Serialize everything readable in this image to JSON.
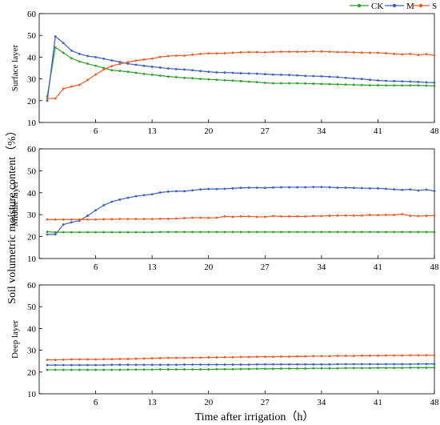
{
  "figure": {
    "ylabel": "Soil volumetric moisture content（%）",
    "xlabel": "Time after irrigation（h）"
  },
  "legend": [
    {
      "name": "CK",
      "color": "#2ca02c"
    },
    {
      "name": "M",
      "color": "#3a5fbd"
    },
    {
      "name": "S",
      "color": "#f05a28"
    }
  ],
  "chart_data": [
    {
      "type": "line",
      "panel_label": "Surface layer",
      "xlim": [
        -1,
        48
      ],
      "ylim": [
        10,
        60
      ],
      "xticks": [
        6,
        13,
        20,
        27,
        34,
        41,
        48
      ],
      "yticks": [
        10,
        20,
        30,
        40,
        50,
        60
      ],
      "grid": false,
      "legend": "top-right",
      "x": [
        0,
        1,
        2,
        3,
        4,
        5,
        6,
        7,
        8,
        9,
        10,
        11,
        12,
        13,
        14,
        15,
        16,
        17,
        18,
        19,
        20,
        21,
        22,
        23,
        24,
        25,
        26,
        27,
        28,
        29,
        30,
        31,
        32,
        33,
        34,
        35,
        36,
        37,
        38,
        39,
        40,
        41,
        42,
        43,
        44,
        45,
        46,
        47,
        48
      ],
      "series": [
        {
          "name": "CK",
          "values": [
            22,
            44.5,
            42,
            39.5,
            38,
            37,
            36,
            35,
            34,
            33.7,
            33.3,
            32.8,
            32.3,
            31.9,
            31.5,
            31.1,
            30.8,
            30.5,
            30.3,
            30,
            29.8,
            29.6,
            29.4,
            29.2,
            29,
            28.7,
            28.5,
            28.2,
            28,
            28,
            28,
            28,
            27.9,
            27.8,
            27.7,
            27.6,
            27.5,
            27.4,
            27.3,
            27.2,
            27.1,
            27.1,
            27,
            27,
            27,
            27,
            27,
            26.9,
            26.8
          ]
        },
        {
          "name": "M",
          "values": [
            20,
            49.5,
            46.5,
            43,
            41.5,
            40.5,
            40,
            39.3,
            38.5,
            37.8,
            37,
            36.5,
            36,
            35.6,
            35.2,
            34.8,
            34.5,
            34.3,
            34,
            33.6,
            33.3,
            33,
            32.9,
            32.8,
            32.6,
            32.5,
            32.4,
            32.2,
            32,
            31.9,
            31.8,
            31.6,
            31.4,
            31.3,
            31.2,
            31,
            30.8,
            30.5,
            30.2,
            30,
            29.6,
            29.3,
            29.1,
            29,
            28.9,
            28.8,
            28.6,
            28.4,
            28.3
          ]
        },
        {
          "name": "S",
          "values": [
            21,
            21,
            25.5,
            26.5,
            27.3,
            29.5,
            32,
            34.3,
            35.9,
            36.9,
            37.7,
            38.4,
            38.9,
            39.3,
            40.1,
            40.5,
            40.7,
            40.7,
            41.1,
            41.5,
            41.7,
            41.7,
            41.8,
            42,
            42.2,
            42.3,
            42.3,
            42.2,
            42.4,
            42.5,
            42.5,
            42.5,
            42.5,
            42.6,
            42.6,
            42.5,
            42.3,
            42.3,
            42.2,
            42.1,
            42,
            42,
            41.8,
            41.5,
            41.3,
            41.5,
            41,
            41.4,
            40.8
          ]
        }
      ]
    },
    {
      "type": "line",
      "panel_label": "Middle layer",
      "xlim": [
        -1,
        48
      ],
      "ylim": [
        10,
        60
      ],
      "xticks": [
        6,
        13,
        20,
        27,
        34,
        41,
        48
      ],
      "yticks": [
        10,
        20,
        30,
        40,
        50,
        60
      ],
      "grid": false,
      "x": [
        0,
        1,
        2,
        3,
        4,
        5,
        6,
        7,
        8,
        9,
        10,
        11,
        12,
        13,
        14,
        15,
        16,
        17,
        18,
        19,
        20,
        21,
        22,
        23,
        24,
        25,
        26,
        27,
        28,
        29,
        30,
        31,
        32,
        33,
        34,
        35,
        36,
        37,
        38,
        39,
        40,
        41,
        42,
        43,
        44,
        45,
        46,
        47,
        48
      ],
      "series": [
        {
          "name": "CK",
          "values": [
            22.2,
            22,
            22,
            22,
            22,
            22,
            22,
            22,
            22,
            22,
            22,
            22,
            22,
            22,
            22.1,
            22.1,
            22.1,
            22.1,
            22.1,
            22.1,
            22.1,
            22.1,
            22.1,
            22.1,
            22.1,
            22.1,
            22.1,
            22.1,
            22.1,
            22.1,
            22.1,
            22.1,
            22.1,
            22.1,
            22.1,
            22.1,
            22.1,
            22.1,
            22.1,
            22.1,
            22.1,
            22.1,
            22.1,
            22.1,
            22.1,
            22.1,
            22.1,
            22.1,
            22.1
          ]
        },
        {
          "name": "M",
          "values": [
            21,
            21,
            25.5,
            26.5,
            27.3,
            29.5,
            32,
            34.3,
            35.9,
            36.9,
            37.7,
            38.4,
            38.9,
            39.3,
            40.1,
            40.5,
            40.7,
            40.7,
            41.1,
            41.5,
            41.7,
            41.7,
            41.8,
            42,
            42.2,
            42.3,
            42.3,
            42.2,
            42.4,
            42.5,
            42.5,
            42.5,
            42.5,
            42.6,
            42.6,
            42.5,
            42.3,
            42.3,
            42.2,
            42.1,
            42,
            42,
            41.8,
            41.5,
            41.3,
            41.5,
            41,
            41.4,
            40.8
          ]
        },
        {
          "name": "S",
          "values": [
            27.8,
            27.8,
            27.8,
            27.8,
            27.8,
            27.8,
            27.8,
            27.9,
            27.9,
            28,
            28,
            28,
            28,
            28,
            28.1,
            28.1,
            28.2,
            28.4,
            28.6,
            28.6,
            28.5,
            28.6,
            29.2,
            29,
            29.2,
            29.2,
            29,
            29,
            29.4,
            29.2,
            29.2,
            29.2,
            29.2,
            29.4,
            29.4,
            29.5,
            29.6,
            29.6,
            29.6,
            29.6,
            29.9,
            29.8,
            29.9,
            29.9,
            30.2,
            29.5,
            29.4,
            29.5,
            29.6
          ]
        }
      ]
    },
    {
      "type": "line",
      "panel_label": "Deep layer",
      "xlim": [
        -1,
        48
      ],
      "ylim": [
        10,
        60
      ],
      "xticks": [
        6,
        13,
        20,
        27,
        34,
        41,
        48
      ],
      "yticks": [
        10,
        20,
        30,
        40,
        50,
        60
      ],
      "grid": false,
      "x": [
        0,
        1,
        2,
        3,
        4,
        5,
        6,
        7,
        8,
        9,
        10,
        11,
        12,
        13,
        14,
        15,
        16,
        17,
        18,
        19,
        20,
        21,
        22,
        23,
        24,
        25,
        26,
        27,
        28,
        29,
        30,
        31,
        32,
        33,
        34,
        35,
        36,
        37,
        38,
        39,
        40,
        41,
        42,
        43,
        44,
        45,
        46,
        47,
        48
      ],
      "series": [
        {
          "name": "CK",
          "values": [
            21,
            21,
            21,
            21,
            21,
            21,
            21,
            21,
            21,
            21,
            21.1,
            21.1,
            21.1,
            21.1,
            21.2,
            21.2,
            21.2,
            21.2,
            21.2,
            21.2,
            21.2,
            21.3,
            21.3,
            21.3,
            21.4,
            21.4,
            21.5,
            21.5,
            21.5,
            21.6,
            21.6,
            21.6,
            21.6,
            21.7,
            21.7,
            21.7,
            21.7,
            21.8,
            21.8,
            21.8,
            21.8,
            21.9,
            21.9,
            21.9,
            21.9,
            22,
            22,
            22,
            22
          ]
        },
        {
          "name": "M",
          "values": [
            23.2,
            23.2,
            23.2,
            23.2,
            23.2,
            23.2,
            23.2,
            23.2,
            23.3,
            23.3,
            23.3,
            23.3,
            23.3,
            23.3,
            23.3,
            23.3,
            23.3,
            23.4,
            23.4,
            23.4,
            23.4,
            23.4,
            23.4,
            23.4,
            23.4,
            23.4,
            23.5,
            23.5,
            23.5,
            23.5,
            23.5,
            23.5,
            23.5,
            23.5,
            23.5,
            23.5,
            23.6,
            23.6,
            23.6,
            23.6,
            23.6,
            23.6,
            23.6,
            23.6,
            23.6,
            23.6,
            23.7,
            23.7,
            23.7
          ]
        },
        {
          "name": "S",
          "values": [
            25.6,
            25.6,
            25.7,
            25.8,
            25.8,
            25.8,
            25.8,
            25.9,
            25.9,
            26,
            26,
            26.1,
            26.2,
            26.3,
            26.4,
            26.5,
            26.5,
            26.5,
            26.6,
            26.6,
            26.7,
            26.7,
            26.8,
            26.8,
            26.9,
            26.9,
            27,
            27,
            27,
            27.1,
            27.1,
            27.2,
            27.2,
            27.3,
            27.3,
            27.3,
            27.4,
            27.4,
            27.4,
            27.5,
            27.5,
            27.5,
            27.6,
            27.6,
            27.6,
            27.7,
            27.7,
            27.7,
            27.7
          ]
        }
      ]
    }
  ]
}
